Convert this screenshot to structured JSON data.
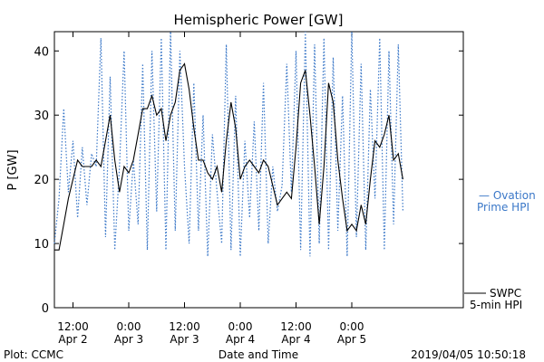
{
  "chart_data": {
    "type": "line",
    "title": "Hemispheric Power [GW]",
    "xlabel": "Date and Time",
    "ylabel": "P [GW]",
    "ylim": [
      0,
      43
    ],
    "xlim": [
      "2019-04-02 08:00",
      "2019-04-06 00:00"
    ],
    "yticks": [
      0,
      10,
      20,
      30,
      40
    ],
    "xticks": [
      {
        "time": "2019-04-02 12:00",
        "line1": "12:00",
        "line2": "Apr 2"
      },
      {
        "time": "2019-04-03 00:00",
        "line1": "0:00",
        "line2": "Apr 3"
      },
      {
        "time": "2019-04-03 12:00",
        "line1": "12:00",
        "line2": "Apr 3"
      },
      {
        "time": "2019-04-04 00:00",
        "line1": "0:00",
        "line2": "Apr 4"
      },
      {
        "time": "2019-04-04 12:00",
        "line1": "12:00",
        "line2": "Apr 4"
      },
      {
        "time": "2019-04-05 00:00",
        "line1": "0:00",
        "line2": "Apr 5"
      }
    ],
    "series": [
      {
        "name": "SWPC 5-min HPI",
        "legend_line1": "SWPC",
        "legend_line2": "5-min HPI",
        "color": "#000000",
        "style": "solid",
        "x": [
          "2019-04-02 08:00",
          "2019-04-02 09:00",
          "2019-04-02 10:00",
          "2019-04-02 11:00",
          "2019-04-02 12:00",
          "2019-04-02 13:00",
          "2019-04-02 14:00",
          "2019-04-02 15:00",
          "2019-04-02 16:00",
          "2019-04-02 17:00",
          "2019-04-02 18:00",
          "2019-04-02 19:00",
          "2019-04-02 20:00",
          "2019-04-02 21:00",
          "2019-04-02 22:00",
          "2019-04-02 23:00",
          "2019-04-03 00:00",
          "2019-04-03 01:00",
          "2019-04-03 02:00",
          "2019-04-03 03:00",
          "2019-04-03 04:00",
          "2019-04-03 05:00",
          "2019-04-03 06:00",
          "2019-04-03 07:00",
          "2019-04-03 08:00",
          "2019-04-03 09:00",
          "2019-04-03 10:00",
          "2019-04-03 11:00",
          "2019-04-03 12:00",
          "2019-04-03 13:00",
          "2019-04-03 14:00",
          "2019-04-03 15:00",
          "2019-04-03 16:00",
          "2019-04-03 17:00",
          "2019-04-03 18:00",
          "2019-04-03 19:00",
          "2019-04-03 20:00",
          "2019-04-03 21:00",
          "2019-04-03 22:00",
          "2019-04-03 23:00",
          "2019-04-04 00:00",
          "2019-04-04 01:00",
          "2019-04-04 02:00",
          "2019-04-04 03:00",
          "2019-04-04 04:00",
          "2019-04-04 05:00",
          "2019-04-04 06:00",
          "2019-04-04 07:00",
          "2019-04-04 08:00",
          "2019-04-04 09:00",
          "2019-04-04 10:00",
          "2019-04-04 11:00",
          "2019-04-04 12:00",
          "2019-04-04 13:00",
          "2019-04-04 14:00",
          "2019-04-04 15:00",
          "2019-04-04 16:00",
          "2019-04-04 17:00",
          "2019-04-04 18:00",
          "2019-04-04 19:00",
          "2019-04-04 20:00",
          "2019-04-04 21:00",
          "2019-04-04 22:00",
          "2019-04-04 23:00",
          "2019-04-05 00:00",
          "2019-04-05 01:00",
          "2019-04-05 02:00",
          "2019-04-05 03:00",
          "2019-04-05 04:00",
          "2019-04-05 05:00",
          "2019-04-05 06:00",
          "2019-04-05 07:00",
          "2019-04-05 08:00",
          "2019-04-05 09:00",
          "2019-04-05 10:00",
          "2019-04-05 11:00"
        ],
        "y": [
          9,
          9,
          13,
          17,
          20,
          23,
          22,
          22,
          22,
          23,
          22,
          26,
          30,
          23,
          18,
          22,
          21,
          23,
          27,
          31,
          31,
          33,
          30,
          31,
          26,
          30,
          32,
          37,
          38,
          34,
          28,
          23,
          23,
          21,
          20,
          22,
          18,
          26,
          32,
          28,
          20,
          22,
          23,
          22,
          21,
          23,
          22,
          19,
          16,
          17,
          18,
          17,
          25,
          35,
          37,
          30,
          22,
          13,
          22,
          35,
          32,
          23,
          17,
          12,
          13,
          12,
          16,
          13,
          20,
          26,
          25,
          27,
          30,
          23,
          24,
          20
        ]
      },
      {
        "name": "Ovation Prime HPI",
        "legend_line1": "— Ovation",
        "legend_line2": "Prime HPI",
        "color": "#3b78c8",
        "style": "dotted",
        "x": [
          "2019-04-02 08:00",
          "2019-04-02 09:00",
          "2019-04-02 10:00",
          "2019-04-02 11:00",
          "2019-04-02 12:00",
          "2019-04-02 13:00",
          "2019-04-02 14:00",
          "2019-04-02 15:00",
          "2019-04-02 16:00",
          "2019-04-02 17:00",
          "2019-04-02 18:00",
          "2019-04-02 19:00",
          "2019-04-02 20:00",
          "2019-04-02 21:00",
          "2019-04-02 22:00",
          "2019-04-02 23:00",
          "2019-04-03 00:00",
          "2019-04-03 01:00",
          "2019-04-03 02:00",
          "2019-04-03 03:00",
          "2019-04-03 04:00",
          "2019-04-03 05:00",
          "2019-04-03 06:00",
          "2019-04-03 07:00",
          "2019-04-03 08:00",
          "2019-04-03 09:00",
          "2019-04-03 10:00",
          "2019-04-03 11:00",
          "2019-04-03 12:00",
          "2019-04-03 13:00",
          "2019-04-03 14:00",
          "2019-04-03 15:00",
          "2019-04-03 16:00",
          "2019-04-03 17:00",
          "2019-04-03 18:00",
          "2019-04-03 19:00",
          "2019-04-03 20:00",
          "2019-04-03 21:00",
          "2019-04-03 22:00",
          "2019-04-03 23:00",
          "2019-04-04 00:00",
          "2019-04-04 01:00",
          "2019-04-04 02:00",
          "2019-04-04 03:00",
          "2019-04-04 04:00",
          "2019-04-04 05:00",
          "2019-04-04 06:00",
          "2019-04-04 07:00",
          "2019-04-04 08:00",
          "2019-04-04 09:00",
          "2019-04-04 10:00",
          "2019-04-04 11:00",
          "2019-04-04 12:00",
          "2019-04-04 13:00",
          "2019-04-04 14:00",
          "2019-04-04 15:00",
          "2019-04-04 16:00",
          "2019-04-04 17:00",
          "2019-04-04 18:00",
          "2019-04-04 19:00",
          "2019-04-04 20:00",
          "2019-04-04 21:00",
          "2019-04-04 22:00",
          "2019-04-04 23:00",
          "2019-04-05 00:00",
          "2019-04-05 01:00",
          "2019-04-05 02:00",
          "2019-04-05 03:00",
          "2019-04-05 04:00",
          "2019-04-05 05:00",
          "2019-04-05 06:00",
          "2019-04-05 07:00",
          "2019-04-05 08:00",
          "2019-04-05 09:00",
          "2019-04-05 10:00",
          "2019-04-05 11:00"
        ],
        "y": [
          10,
          17,
          31,
          18,
          26,
          14,
          25,
          16,
          24,
          22,
          42,
          11,
          36,
          9,
          22,
          40,
          12,
          23,
          13,
          38,
          9,
          40,
          15,
          42,
          9,
          43,
          12,
          40,
          22,
          10,
          35,
          12,
          30,
          8,
          27,
          18,
          10,
          41,
          9,
          33,
          8,
          26,
          14,
          29,
          12,
          35,
          10,
          22,
          15,
          19,
          38,
          18,
          40,
          9,
          43,
          8,
          41,
          10,
          42,
          9,
          39,
          12,
          33,
          8,
          43,
          11,
          38,
          9,
          34,
          17,
          42,
          9,
          40,
          13,
          41,
          15
        ]
      }
    ],
    "footer_left": "Plot: CCMC",
    "footer_right": "2019/04/05 10:50:18"
  }
}
